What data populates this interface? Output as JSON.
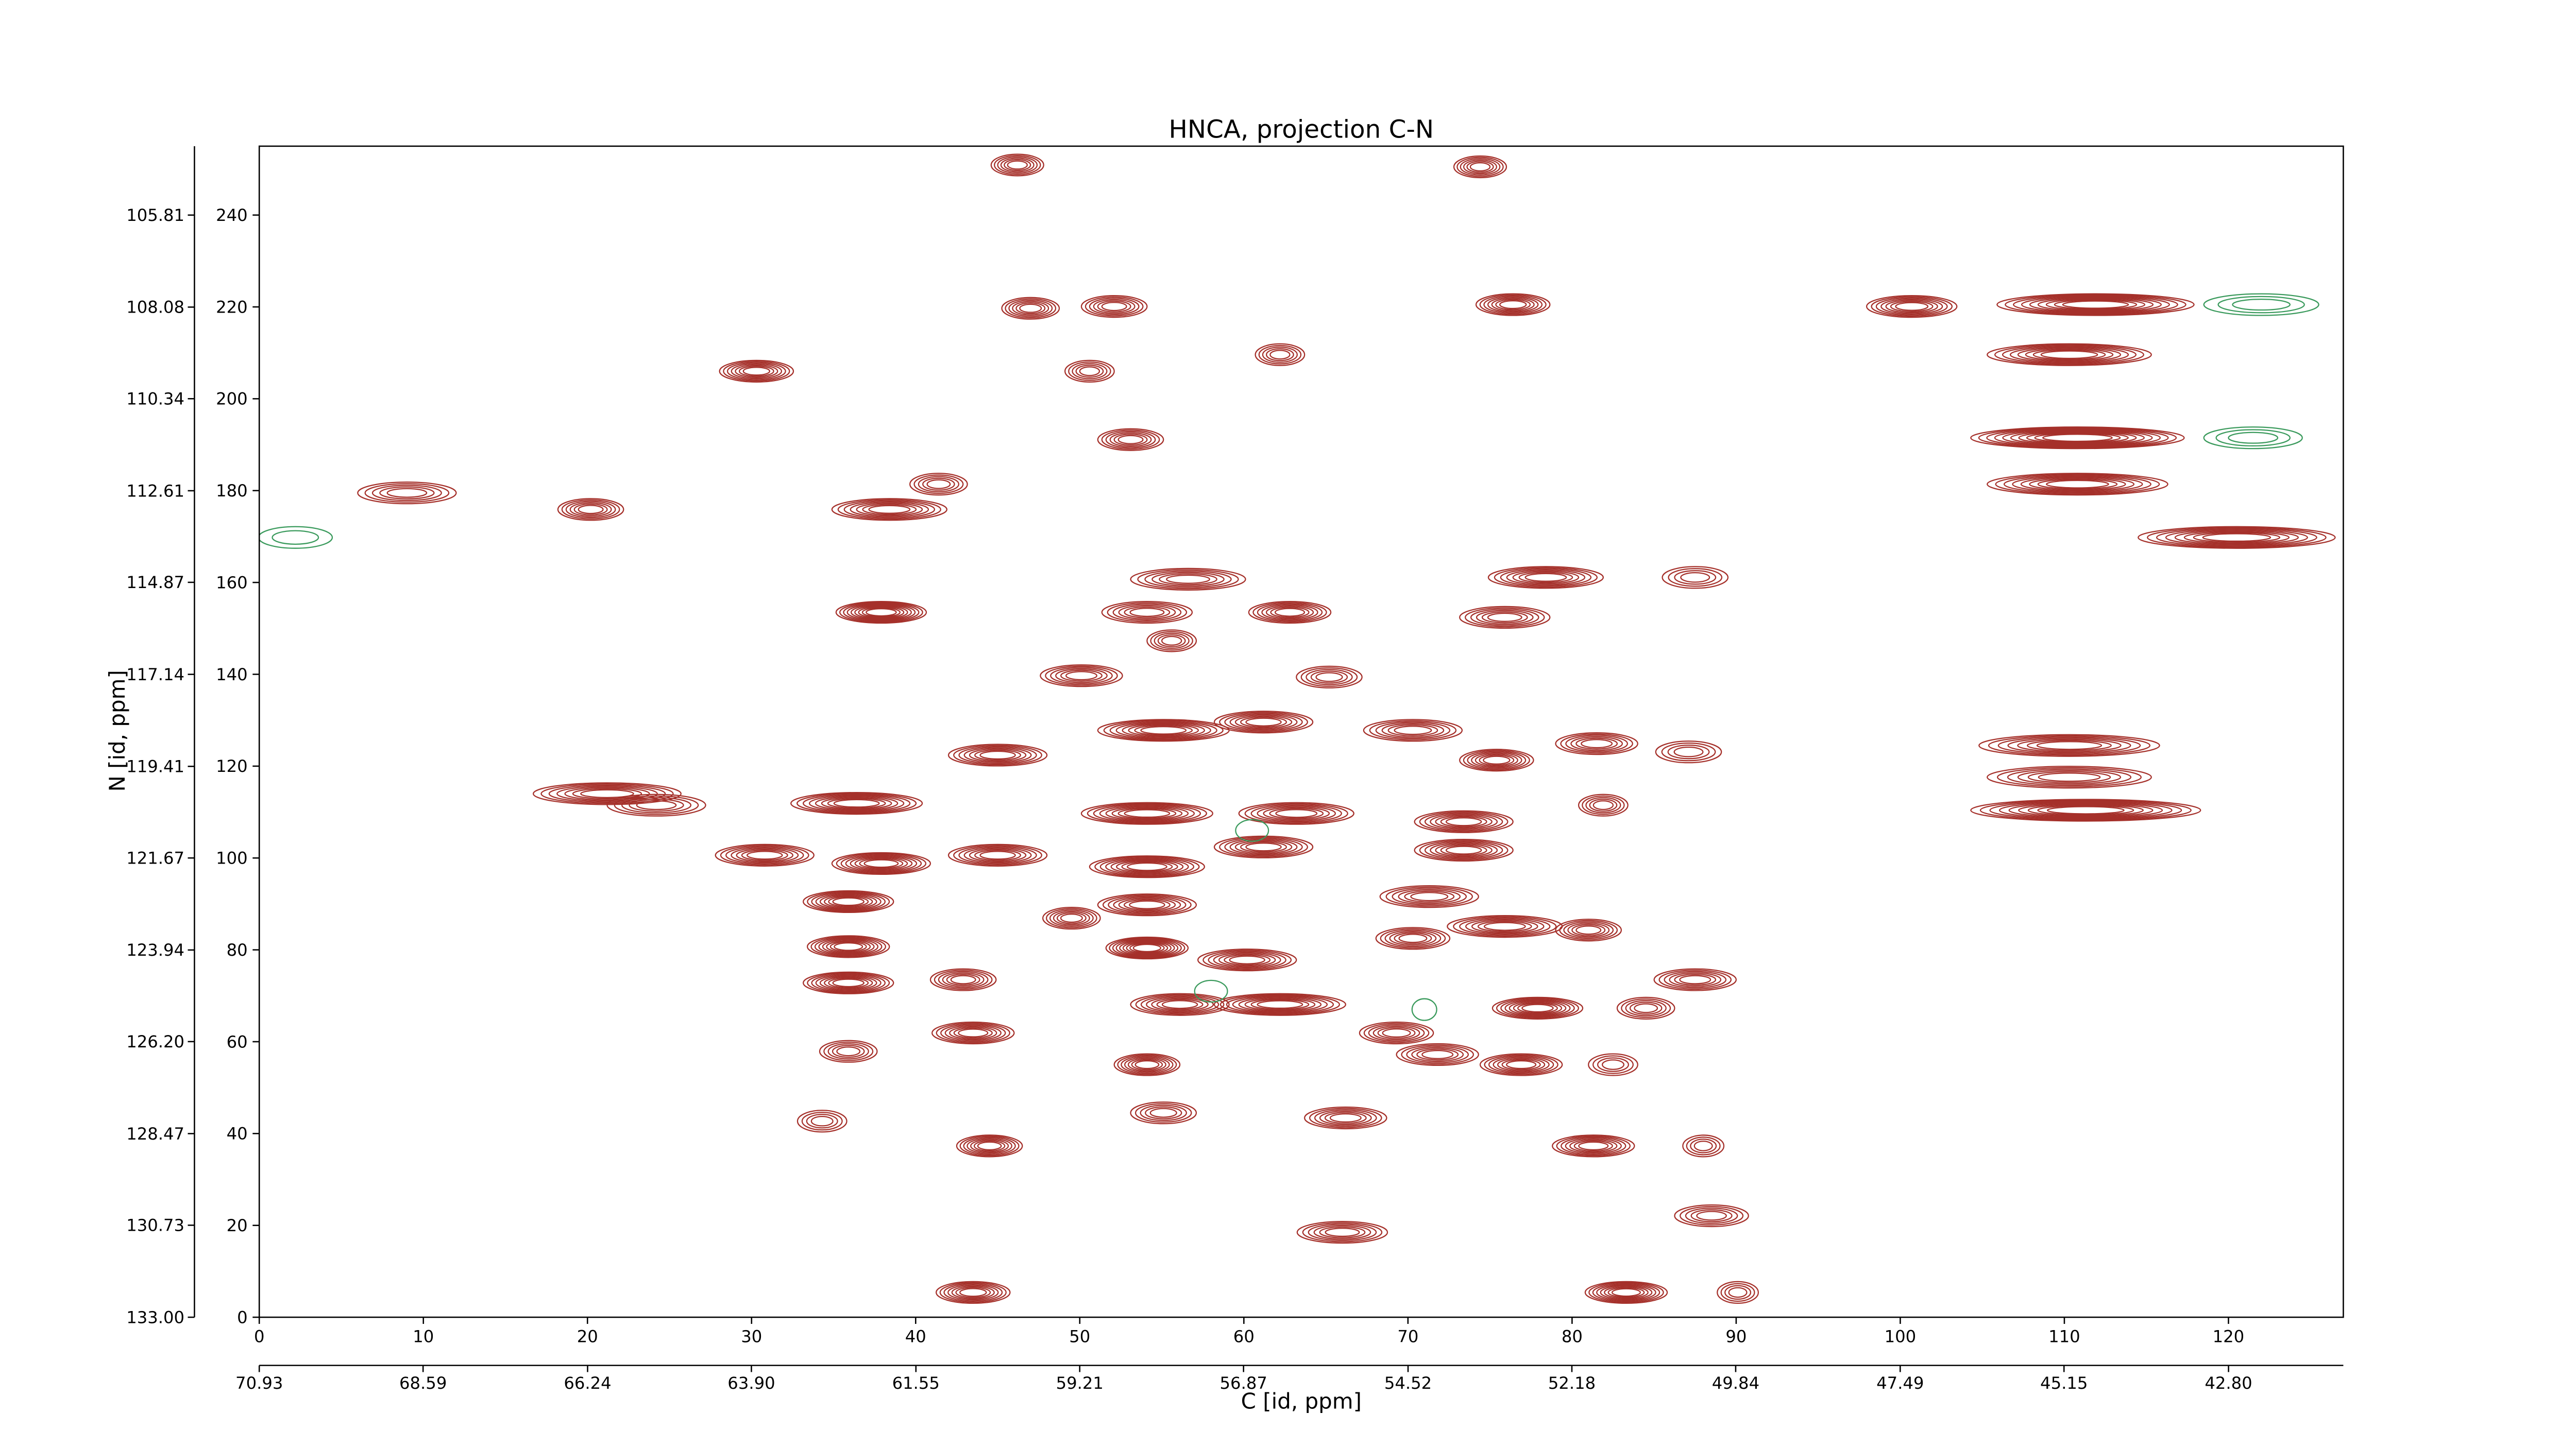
{
  "chart_data": {
    "type": "contour",
    "title": "HNCA, projection C-N",
    "xlabel": "C [id, ppm]",
    "ylabel": "N [id, ppm]",
    "xlim": [
      0,
      127
    ],
    "ylim": [
      0,
      255
    ],
    "xticks": [
      0,
      10,
      20,
      30,
      40,
      50,
      60,
      70,
      80,
      90,
      100,
      110,
      120
    ],
    "yticks": [
      0,
      20,
      40,
      60,
      80,
      100,
      120,
      140,
      160,
      180,
      200,
      220,
      240
    ],
    "x2lim": [
      70.93,
      41.16
    ],
    "x2ticks": [
      70.93,
      68.59,
      66.24,
      {
        "value": 63.9,
        "label": "63.90"
      },
      61.55,
      59.21,
      56.87,
      54.52,
      52.18,
      49.84,
      47.49,
      45.15,
      {
        "value": 42.8,
        "label": "42.80"
      }
    ],
    "y2lim": [
      133.0,
      104.11
    ],
    "y2ticks": [
      {
        "value": 133,
        "label": "133.00"
      },
      130.73,
      128.47,
      {
        "value": 126.2,
        "label": "126.20"
      },
      123.94,
      121.67,
      119.41,
      117.14,
      114.87,
      112.61,
      110.34,
      108.08,
      105.81
    ],
    "series": [
      {
        "color": "#a5302a",
        "peaks": [
          {
            "x": 46.2,
            "y": 250.9,
            "w": 3.2,
            "n": 6
          },
          {
            "x": 74.4,
            "y": 250.5,
            "w": 3.2,
            "n": 6
          },
          {
            "x": 47.0,
            "y": 219.7,
            "w": 3.5,
            "n": 6
          },
          {
            "x": 52.1,
            "y": 220.1,
            "w": 4.0,
            "n": 6
          },
          {
            "x": 76.4,
            "y": 220.5,
            "w": 4.5,
            "n": 7
          },
          {
            "x": 100.7,
            "y": 220.1,
            "w": 5.5,
            "n": 7
          },
          {
            "x": 111.9,
            "y": 220.5,
            "w": 12.0,
            "n": 9
          },
          {
            "x": 30.3,
            "y": 206.0,
            "w": 4.5,
            "n": 7
          },
          {
            "x": 50.6,
            "y": 206.0,
            "w": 3.0,
            "n": 5
          },
          {
            "x": 62.2,
            "y": 209.6,
            "w": 3.0,
            "n": 5
          },
          {
            "x": 110.3,
            "y": 209.6,
            "w": 10.0,
            "n": 8
          },
          {
            "x": 53.1,
            "y": 191.1,
            "w": 4.0,
            "n": 6
          },
          {
            "x": 110.8,
            "y": 191.5,
            "w": 13.0,
            "n": 10
          },
          {
            "x": 9.0,
            "y": 179.5,
            "w": 6.0,
            "n": 5
          },
          {
            "x": 110.8,
            "y": 181.4,
            "w": 11.0,
            "n": 8
          },
          {
            "x": 20.2,
            "y": 175.9,
            "w": 4.0,
            "n": 6
          },
          {
            "x": 38.4,
            "y": 175.9,
            "w": 7.0,
            "n": 7
          },
          {
            "x": 41.4,
            "y": 181.4,
            "w": 3.5,
            "n": 5
          },
          {
            "x": 120.5,
            "y": 169.8,
            "w": 12.0,
            "n": 8
          },
          {
            "x": 37.9,
            "y": 153.5,
            "w": 5.5,
            "n": 9
          },
          {
            "x": 56.6,
            "y": 160.7,
            "w": 7.0,
            "n": 6
          },
          {
            "x": 62.8,
            "y": 153.5,
            "w": 5.0,
            "n": 7
          },
          {
            "x": 54.1,
            "y": 153.5,
            "w": 5.5,
            "n": 6
          },
          {
            "x": 55.6,
            "y": 147.3,
            "w": 3.0,
            "n": 5
          },
          {
            "x": 78.4,
            "y": 161.1,
            "w": 7.0,
            "n": 7
          },
          {
            "x": 75.9,
            "y": 152.4,
            "w": 5.5,
            "n": 6
          },
          {
            "x": 87.5,
            "y": 161.1,
            "w": 4.0,
            "n": 4
          },
          {
            "x": 50.1,
            "y": 139.7,
            "w": 5.0,
            "n": 6
          },
          {
            "x": 65.2,
            "y": 139.4,
            "w": 4.0,
            "n": 5
          },
          {
            "x": 110.3,
            "y": 124.5,
            "w": 11.0,
            "n": 7
          },
          {
            "x": 110.3,
            "y": 117.6,
            "w": 10.0,
            "n": 6
          },
          {
            "x": 111.3,
            "y": 110.4,
            "w": 14.0,
            "n": 9
          },
          {
            "x": 21.2,
            "y": 114.0,
            "w": 9.0,
            "n": 7
          },
          {
            "x": 24.2,
            "y": 111.5,
            "w": 6.0,
            "n": 5
          },
          {
            "x": 36.4,
            "y": 111.9,
            "w": 8.0,
            "n": 8
          },
          {
            "x": 45.0,
            "y": 122.4,
            "w": 6.0,
            "n": 7
          },
          {
            "x": 55.1,
            "y": 127.8,
            "w": 8.0,
            "n": 8
          },
          {
            "x": 61.2,
            "y": 129.6,
            "w": 6.0,
            "n": 7
          },
          {
            "x": 70.3,
            "y": 127.8,
            "w": 6.0,
            "n": 6
          },
          {
            "x": 75.4,
            "y": 121.3,
            "w": 4.5,
            "n": 7
          },
          {
            "x": 81.5,
            "y": 124.9,
            "w": 5.0,
            "n": 6
          },
          {
            "x": 87.1,
            "y": 123.1,
            "w": 4.0,
            "n": 4
          },
          {
            "x": 54.1,
            "y": 109.7,
            "w": 8.0,
            "n": 8
          },
          {
            "x": 63.2,
            "y": 109.7,
            "w": 7.0,
            "n": 7
          },
          {
            "x": 73.4,
            "y": 107.9,
            "w": 6.0,
            "n": 7
          },
          {
            "x": 81.9,
            "y": 111.5,
            "w": 3.0,
            "n": 5
          },
          {
            "x": 30.8,
            "y": 100.6,
            "w": 6.0,
            "n": 7
          },
          {
            "x": 37.9,
            "y": 98.8,
            "w": 6.0,
            "n": 8
          },
          {
            "x": 45.0,
            "y": 100.6,
            "w": 6.0,
            "n": 7
          },
          {
            "x": 54.1,
            "y": 98.1,
            "w": 7.0,
            "n": 8
          },
          {
            "x": 61.2,
            "y": 102.4,
            "w": 6.0,
            "n": 7
          },
          {
            "x": 73.4,
            "y": 101.7,
            "w": 6.0,
            "n": 7
          },
          {
            "x": 35.9,
            "y": 90.5,
            "w": 5.5,
            "n": 8
          },
          {
            "x": 54.1,
            "y": 89.8,
            "w": 6.0,
            "n": 7
          },
          {
            "x": 71.3,
            "y": 91.6,
            "w": 6.0,
            "n": 6
          },
          {
            "x": 49.5,
            "y": 86.9,
            "w": 3.5,
            "n": 6
          },
          {
            "x": 54.1,
            "y": 80.4,
            "w": 5.0,
            "n": 9
          },
          {
            "x": 35.9,
            "y": 80.7,
            "w": 5.0,
            "n": 8
          },
          {
            "x": 35.9,
            "y": 72.8,
            "w": 5.5,
            "n": 8
          },
          {
            "x": 60.2,
            "y": 77.8,
            "w": 6.0,
            "n": 7
          },
          {
            "x": 70.3,
            "y": 82.5,
            "w": 4.5,
            "n": 6
          },
          {
            "x": 75.9,
            "y": 85.1,
            "w": 7.0,
            "n": 7
          },
          {
            "x": 81.0,
            "y": 84.3,
            "w": 4.0,
            "n": 6
          },
          {
            "x": 42.9,
            "y": 73.5,
            "w": 4.0,
            "n": 6
          },
          {
            "x": 62.2,
            "y": 68.1,
            "w": 8.0,
            "n": 8
          },
          {
            "x": 56.1,
            "y": 68.1,
            "w": 6.0,
            "n": 7
          },
          {
            "x": 77.9,
            "y": 67.3,
            "w": 5.5,
            "n": 8
          },
          {
            "x": 84.5,
            "y": 67.3,
            "w": 3.5,
            "n": 5
          },
          {
            "x": 87.5,
            "y": 73.5,
            "w": 5.0,
            "n": 6
          },
          {
            "x": 43.5,
            "y": 61.9,
            "w": 5.0,
            "n": 7
          },
          {
            "x": 35.9,
            "y": 57.9,
            "w": 3.5,
            "n": 5
          },
          {
            "x": 69.3,
            "y": 61.9,
            "w": 4.5,
            "n": 6
          },
          {
            "x": 71.8,
            "y": 57.2,
            "w": 5.0,
            "n": 6
          },
          {
            "x": 54.1,
            "y": 55.0,
            "w": 4.0,
            "n": 7
          },
          {
            "x": 76.9,
            "y": 55.0,
            "w": 5.0,
            "n": 7
          },
          {
            "x": 82.5,
            "y": 55.0,
            "w": 3.0,
            "n": 4
          },
          {
            "x": 55.1,
            "y": 44.5,
            "w": 4.0,
            "n": 5
          },
          {
            "x": 66.2,
            "y": 43.4,
            "w": 5.0,
            "n": 6
          },
          {
            "x": 34.3,
            "y": 42.7,
            "w": 3.0,
            "n": 4
          },
          {
            "x": 44.5,
            "y": 37.3,
            "w": 4.0,
            "n": 7
          },
          {
            "x": 81.3,
            "y": 37.3,
            "w": 5.0,
            "n": 7
          },
          {
            "x": 88.0,
            "y": 37.3,
            "w": 2.5,
            "n": 4
          },
          {
            "x": 88.5,
            "y": 22.1,
            "w": 4.5,
            "n": 5
          },
          {
            "x": 66.0,
            "y": 18.5,
            "w": 5.5,
            "n": 6
          },
          {
            "x": 43.5,
            "y": 5.4,
            "w": 4.5,
            "n": 7
          },
          {
            "x": 83.3,
            "y": 5.4,
            "w": 5.0,
            "n": 8
          },
          {
            "x": 90.1,
            "y": 5.4,
            "w": 2.5,
            "n": 4
          }
        ]
      },
      {
        "color": "#3a9a5c",
        "peaks": [
          {
            "x": 122.0,
            "y": 220.5,
            "w": 7.0,
            "n": 3
          },
          {
            "x": 121.5,
            "y": 191.5,
            "w": 6.0,
            "n": 3
          },
          {
            "x": 2.2,
            "y": 169.8,
            "w": 4.5,
            "n": 2
          },
          {
            "x": 60.5,
            "y": 106.0,
            "w": 2.0,
            "n": 1
          },
          {
            "x": 71.0,
            "y": 67.0,
            "w": 1.5,
            "n": 1
          },
          {
            "x": 58.0,
            "y": 71.0,
            "w": 2.0,
            "n": 1
          }
        ]
      }
    ]
  }
}
